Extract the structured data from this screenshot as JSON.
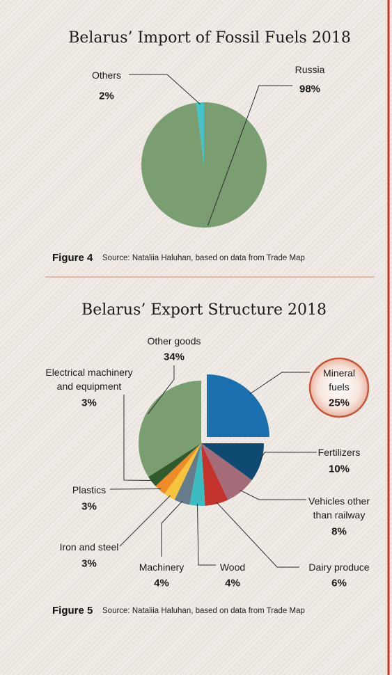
{
  "chart_data": [
    {
      "type": "pie",
      "title": "Belarus’ Import of Fossil Fuels 2018",
      "categories": [
        "Russia",
        "Others"
      ],
      "values": [
        98,
        2
      ],
      "value_labels": [
        "98%",
        "2%"
      ],
      "colors": [
        "#7a9e72",
        "#45c3c6"
      ],
      "figure": "Figure 4",
      "source": "Source: Nataliia Haluhan, based on data from Trade Map"
    },
    {
      "type": "pie",
      "title": "Belarus’ Export Structure 2018",
      "categories": [
        "Mineral fuels",
        "Fertilizers",
        "Vehicles other than railway",
        "Dairy produce",
        "Wood",
        "Machinery",
        "Iron and steel",
        "Plastics",
        "Electrical machinery and equipment",
        "Other goods"
      ],
      "values": [
        25,
        10,
        8,
        6,
        4,
        4,
        3,
        3,
        3,
        34
      ],
      "value_labels": [
        "25%",
        "10%",
        "8%",
        "6%",
        "4%",
        "4%",
        "3%",
        "3%",
        "3%",
        "34%"
      ],
      "colors": [
        "#1a6fae",
        "#0e4a72",
        "#a66b78",
        "#c4322c",
        "#3cbcc0",
        "#647c8c",
        "#f5c43c",
        "#f08c28",
        "#2e5a2e",
        "#7a9e72"
      ],
      "figure": "Figure 5",
      "source": "Source: Nataliia Haluhan, based on data from Trade Map"
    }
  ]
}
